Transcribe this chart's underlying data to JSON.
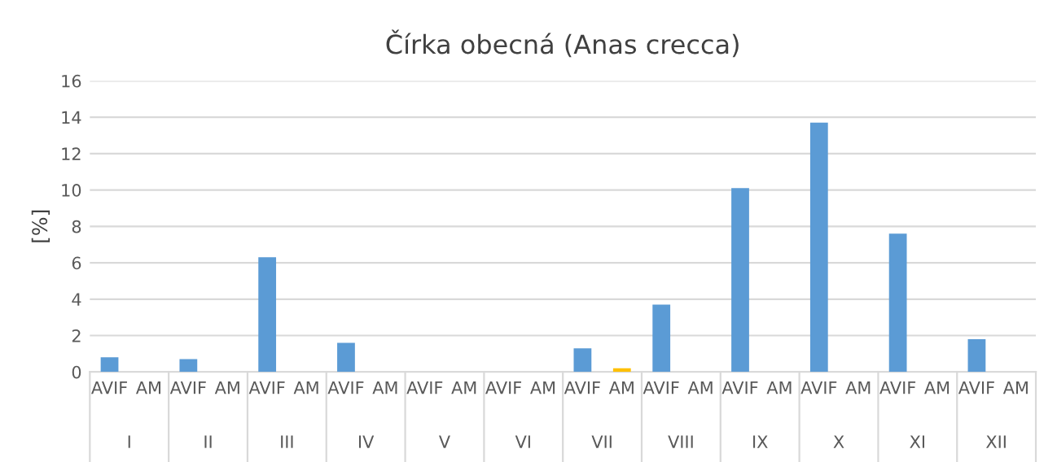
{
  "chart_data": {
    "type": "bar",
    "title": "Čírka obecná (Anas crecca)",
    "ylabel": "[%]",
    "categories": [
      "AVIF",
      "AM",
      "AVIF",
      "AM",
      "AVIF",
      "AM",
      "AVIF",
      "AM",
      "AVIF",
      "AM",
      "AVIF",
      "AM",
      "AVIF",
      "AM",
      "AVIF",
      "AM",
      "AVIF",
      "AM",
      "AVIF",
      "AM",
      "AVIF",
      "AM",
      "AVIF",
      "AM"
    ],
    "annotations": [
      "I",
      "II",
      "III",
      "IV",
      "V",
      "VI",
      "VII",
      "VIII",
      "IX",
      "X",
      "XI",
      "XII"
    ],
    "values": [
      0.8,
      0,
      0.7,
      0,
      6.3,
      0,
      1.6,
      0,
      0,
      0,
      0,
      0,
      1.3,
      0.2,
      3.7,
      0,
      10.1,
      0,
      13.7,
      0,
      7.6,
      0,
      1.8,
      0
    ],
    "colors": [
      "#5b9bd5",
      "#ffc000",
      "#5b9bd5",
      "#ffc000",
      "#5b9bd5",
      "#ffc000",
      "#5b9bd5",
      "#ffc000",
      "#5b9bd5",
      "#ffc000",
      "#5b9bd5",
      "#ffc000",
      "#5b9bd5",
      "#ffc000",
      "#5b9bd5",
      "#ffc000",
      "#5b9bd5",
      "#ffc000",
      "#5b9bd5",
      "#ffc000",
      "#5b9bd5",
      "#ffc000",
      "#5b9bd5",
      "#ffc000"
    ],
    "ylim": [
      0,
      16
    ],
    "yticks": [
      0,
      2,
      4,
      6,
      8,
      10,
      12,
      14,
      16
    ],
    "grid": "y",
    "legend": false
  }
}
